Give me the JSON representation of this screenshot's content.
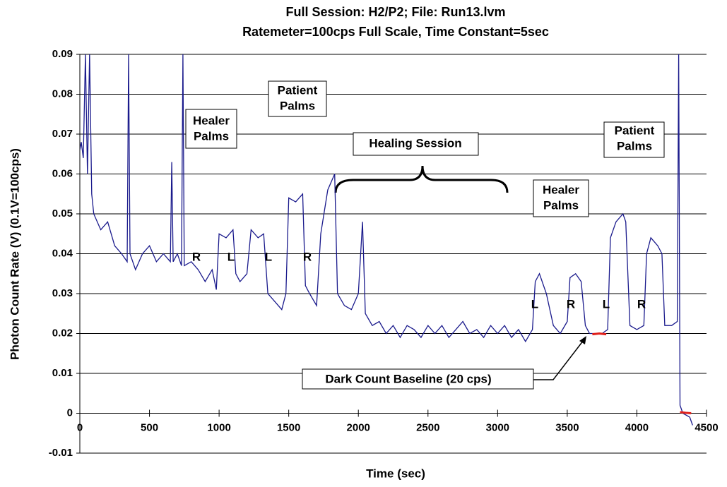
{
  "chart_data": {
    "type": "line",
    "title": [
      "Full Session: H2/P2; File: Run13.lvm",
      "Ratemeter=100cps Full Scale, Time Constant=5sec"
    ],
    "xlabel": "Time (sec)",
    "ylabel": "Photon Count Rate (V) (0.1V=100cps)",
    "xlim": [
      0,
      4500
    ],
    "xticks": [
      0,
      500,
      1000,
      1500,
      2000,
      2500,
      3000,
      3500,
      4000,
      4500
    ],
    "ylim": [
      -0.01,
      0.09
    ],
    "yticks": [
      -0.01,
      0,
      0.01,
      0.02,
      0.03,
      0.04,
      0.05,
      0.06,
      0.07,
      0.08,
      0.09
    ],
    "grid": true,
    "series": [
      {
        "color": "#1a1a8c",
        "x": [
          0,
          10,
          25,
          40,
          55,
          70,
          85,
          100,
          150,
          200,
          250,
          300,
          340,
          350,
          360,
          400,
          450,
          500,
          550,
          600,
          650,
          660,
          670,
          700,
          730,
          740,
          750,
          800,
          850,
          900,
          950,
          980,
          1000,
          1050,
          1100,
          1120,
          1150,
          1200,
          1230,
          1280,
          1320,
          1350,
          1400,
          1450,
          1480,
          1500,
          1550,
          1600,
          1620,
          1650,
          1700,
          1730,
          1780,
          1830,
          1850,
          1900,
          1950,
          2000,
          2030,
          2050,
          2100,
          2150,
          2200,
          2250,
          2300,
          2350,
          2400,
          2450,
          2500,
          2550,
          2600,
          2650,
          2700,
          2750,
          2800,
          2850,
          2900,
          2950,
          3000,
          3050,
          3100,
          3150,
          3200,
          3250,
          3270,
          3300,
          3350,
          3400,
          3450,
          3500,
          3520,
          3560,
          3600,
          3630,
          3660,
          3700,
          3750,
          3790,
          3810,
          3850,
          3900,
          3920,
          3950,
          4000,
          4050,
          4070,
          4100,
          4150,
          4180,
          4200,
          4250,
          4290,
          4300,
          4310,
          4330,
          4380,
          4400
        ],
        "values": [
          0.066,
          0.068,
          0.064,
          0.09,
          0.06,
          0.09,
          0.055,
          0.05,
          0.046,
          0.048,
          0.042,
          0.04,
          0.038,
          0.09,
          0.04,
          0.036,
          0.04,
          0.042,
          0.038,
          0.04,
          0.038,
          0.063,
          0.038,
          0.04,
          0.037,
          0.09,
          0.037,
          0.038,
          0.036,
          0.033,
          0.036,
          0.031,
          0.045,
          0.044,
          0.046,
          0.035,
          0.033,
          0.035,
          0.046,
          0.044,
          0.045,
          0.03,
          0.028,
          0.026,
          0.03,
          0.054,
          0.053,
          0.055,
          0.032,
          0.03,
          0.027,
          0.045,
          0.056,
          0.06,
          0.03,
          0.027,
          0.026,
          0.03,
          0.048,
          0.025,
          0.022,
          0.023,
          0.02,
          0.022,
          0.019,
          0.022,
          0.021,
          0.019,
          0.022,
          0.02,
          0.022,
          0.019,
          0.021,
          0.023,
          0.02,
          0.021,
          0.019,
          0.022,
          0.02,
          0.022,
          0.019,
          0.021,
          0.018,
          0.021,
          0.033,
          0.035,
          0.03,
          0.022,
          0.02,
          0.023,
          0.034,
          0.035,
          0.033,
          0.022,
          0.02,
          0.02,
          0.02,
          0.021,
          0.044,
          0.048,
          0.05,
          0.048,
          0.022,
          0.021,
          0.022,
          0.04,
          0.044,
          0.042,
          0.04,
          0.022,
          0.022,
          0.023,
          0.09,
          0.002,
          0.0,
          -0.001,
          -0.003
        ]
      },
      {
        "color": "#e0201a",
        "x": [
          3680,
          3730,
          3780,
          3790,
          4310,
          4350,
          4390
        ],
        "values": [
          0.0198,
          0.02,
          0.0198,
          null,
          0.0003,
          0.0001,
          0.0
        ]
      }
    ],
    "annotations": [
      [
        "Healer",
        "Palms"
      ],
      [
        "Patient",
        "Palms"
      ],
      [
        "Healing Session"
      ],
      [
        "Healer",
        "Palms"
      ],
      [
        "Patient",
        "Palms"
      ],
      [
        "Dark Count Baseline (20 cps)"
      ],
      [
        "R"
      ],
      [
        "L"
      ],
      [
        "L"
      ],
      [
        "R"
      ],
      [
        "L"
      ],
      [
        "R"
      ],
      [
        "L"
      ],
      [
        "R"
      ]
    ]
  }
}
